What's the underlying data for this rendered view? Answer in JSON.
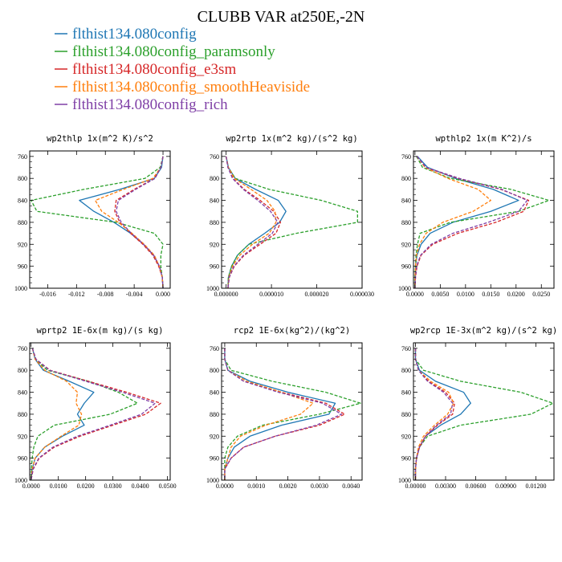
{
  "figure_title": "CLUBB VAR at250E,-2N",
  "legend": [
    {
      "label": "flthist134.080config",
      "color": "#1f77b4"
    },
    {
      "label": "flthist134.080config_paramsonly",
      "color": "#2ca02c"
    },
    {
      "label": "flthist134.080config_e3sm",
      "color": "#d62728"
    },
    {
      "label": "flthist134.080config_smoothHeaviside",
      "color": "#ff7f0e"
    },
    {
      "label": "flthist134.080config_rich",
      "color": "#7f3fa6"
    }
  ],
  "chart_data": [
    {
      "type": "line",
      "title": "wp2thlp  1x(m^2 K)/s^2",
      "xlim": [
        -0.0185,
        0.001
      ],
      "xticks": [
        -0.016,
        -0.012,
        -0.008,
        -0.004,
        0.0
      ],
      "xtick_labels": [
        "-0.016",
        "-0.012",
        "-0.008",
        "-0.004",
        "0.000"
      ],
      "ylim": [
        1000,
        750
      ],
      "yticks": [
        760,
        800,
        840,
        880,
        920,
        960,
        1000
      ],
      "y": [
        760,
        780,
        800,
        820,
        840,
        860,
        880,
        900,
        920,
        940,
        960,
        980,
        1000
      ],
      "series": [
        {
          "name": "flthist134.080config",
          "color": "#1f77b4",
          "dashed": false,
          "values": [
            0.0,
            -0.0002,
            -0.0012,
            -0.006,
            -0.0116,
            -0.0096,
            -0.0068,
            -0.0045,
            -0.0027,
            -0.0013,
            -0.0005,
            -0.0001,
            0.0
          ]
        },
        {
          "name": "flthist134.080config_paramsonly",
          "color": "#2ca02c",
          "dashed": true,
          "values": [
            0.0,
            -0.0004,
            -0.0025,
            -0.011,
            -0.0183,
            -0.0175,
            -0.0065,
            -0.0012,
            0.0,
            -0.0003,
            -0.0003,
            -0.0001,
            0.0
          ]
        },
        {
          "name": "flthist134.080config_e3sm",
          "color": "#d62728",
          "dashed": true,
          "values": [
            0.0,
            -0.0003,
            -0.0012,
            -0.004,
            -0.0065,
            -0.0067,
            -0.006,
            -0.0045,
            -0.0028,
            -0.0014,
            -0.0006,
            -0.0001,
            0.0
          ]
        },
        {
          "name": "flthist134.080config_smoothHeaviside",
          "color": "#ff7f0e",
          "dashed": true,
          "values": [
            0.0,
            -0.0003,
            -0.0014,
            -0.0055,
            -0.0094,
            -0.0085,
            -0.0062,
            -0.0043,
            -0.0026,
            -0.0012,
            -0.0005,
            -0.0001,
            0.0
          ]
        },
        {
          "name": "flthist134.080config_rich",
          "color": "#7f3fa6",
          "dashed": true,
          "values": [
            0.0,
            -0.0003,
            -0.0011,
            -0.0038,
            -0.0062,
            -0.0065,
            -0.0058,
            -0.0044,
            -0.0027,
            -0.0013,
            -0.0005,
            -0.0001,
            0.0
          ]
        }
      ]
    },
    {
      "type": "line",
      "title": "wp2rtp  1x(m^2 kg)/(s^2 kg)",
      "xlim": [
        -1e-06,
        3e-05
      ],
      "xticks": [
        0.0,
        1e-05,
        2e-05,
        3e-05
      ],
      "xtick_labels": [
        "0.000000",
        "0.000010",
        "0.000020",
        "0.000030"
      ],
      "ylim": [
        1000,
        750
      ],
      "yticks": [
        760,
        800,
        840,
        880,
        920,
        960,
        1000
      ],
      "y": [
        760,
        780,
        800,
        820,
        840,
        860,
        880,
        900,
        920,
        940,
        960,
        980,
        1000
      ],
      "series": [
        {
          "name": "flthist134.080config",
          "color": "#1f77b4",
          "dashed": false,
          "values": [
            0.0,
            5e-07,
            2e-06,
            6.5e-06,
            1.15e-05,
            1.32e-05,
            1.18e-05,
            8.5e-06,
            5e-06,
            2.5e-06,
            1.2e-06,
            5e-07,
            4e-07
          ]
        },
        {
          "name": "flthist134.080config_paramsonly",
          "color": "#2ca02c",
          "dashed": true,
          "values": [
            0.0,
            5e-07,
            2e-06,
            9.5e-06,
            2.1e-05,
            2.9e-05,
            2.9e-05,
            1.55e-05,
            5e-06,
            2.5e-06,
            1.2e-06,
            5e-07,
            4e-07
          ]
        },
        {
          "name": "flthist134.080config_e3sm",
          "color": "#d62728",
          "dashed": true,
          "values": [
            0.0,
            4e-07,
            1.5e-06,
            4e-06,
            7.5e-06,
            1.05e-05,
            1.2e-05,
            1.1e-05,
            7.5e-06,
            4e-06,
            1.8e-06,
            7e-07,
            4e-07
          ]
        },
        {
          "name": "flthist134.080config_smoothHeaviside",
          "color": "#ff7f0e",
          "dashed": true,
          "values": [
            0.0,
            5e-07,
            1.8e-06,
            5.5e-06,
            9e-06,
            1.08e-05,
            1.1e-05,
            9.5e-06,
            5.8e-06,
            3e-06,
            1.4e-06,
            6e-07,
            4e-07
          ]
        },
        {
          "name": "flthist134.080config_rich",
          "color": "#7f3fa6",
          "dashed": true,
          "values": [
            0.0,
            4e-07,
            1.4e-06,
            3.8e-06,
            7e-06,
            9.8e-06,
            1.14e-05,
            1.02e-05,
            7e-06,
            3.8e-06,
            1.7e-06,
            7e-07,
            4e-07
          ]
        }
      ]
    },
    {
      "type": "line",
      "title": "wpthlp2  1x(m K^2)/s",
      "xlim": [
        -0.0003,
        0.0275
      ],
      "xticks": [
        0.0,
        0.005,
        0.01,
        0.015,
        0.02,
        0.025
      ],
      "xtick_labels": [
        "0.0000",
        "0.0050",
        "0.0100",
        "0.0150",
        "0.0200",
        "0.0250"
      ],
      "ylim": [
        1000,
        750
      ],
      "yticks": [
        760,
        800,
        840,
        880,
        920,
        960,
        1000
      ],
      "y": [
        760,
        780,
        800,
        820,
        840,
        860,
        880,
        900,
        920,
        940,
        960,
        980,
        1000
      ],
      "series": [
        {
          "name": "flthist134.080config",
          "color": "#1f77b4",
          "dashed": false,
          "values": [
            0.0005,
            0.0025,
            0.008,
            0.0155,
            0.0205,
            0.015,
            0.0075,
            0.003,
            0.0012,
            0.0004,
            0.0001,
            0.0,
            0.0
          ]
        },
        {
          "name": "flthist134.080config_paramsonly",
          "color": "#2ca02c",
          "dashed": true,
          "values": [
            0.0003,
            0.0015,
            0.007,
            0.019,
            0.0265,
            0.0205,
            0.007,
            0.001,
            0.0005,
            0.0002,
            0.0001,
            0.0,
            0.0
          ]
        },
        {
          "name": "flthist134.080config_e3sm",
          "color": "#d62728",
          "dashed": true,
          "values": [
            0.0004,
            0.002,
            0.0085,
            0.017,
            0.0225,
            0.0215,
            0.016,
            0.0085,
            0.0035,
            0.0012,
            0.0004,
            0.0001,
            0.0
          ]
        },
        {
          "name": "flthist134.080config_smoothHeaviside",
          "color": "#ff7f0e",
          "dashed": true,
          "values": [
            0.0004,
            0.002,
            0.0065,
            0.0125,
            0.015,
            0.0115,
            0.0055,
            0.0022,
            0.0009,
            0.0003,
            0.0001,
            0.0,
            0.0
          ]
        },
        {
          "name": "flthist134.080config_rich",
          "color": "#7f3fa6",
          "dashed": true,
          "values": [
            0.0004,
            0.0022,
            0.0088,
            0.0172,
            0.0222,
            0.0205,
            0.0145,
            0.0075,
            0.0032,
            0.0011,
            0.0003,
            0.0001,
            0.0
          ]
        }
      ]
    },
    {
      "type": "line",
      "title": "wprtp2  1E-6x(m kg)/(s kg)",
      "xlim": [
        -0.0005,
        0.051
      ],
      "xticks": [
        0.0,
        0.01,
        0.02,
        0.03,
        0.04,
        0.05
      ],
      "xtick_labels": [
        "0.0000",
        "0.0100",
        "0.0200",
        "0.0300",
        "0.0400",
        "0.0500"
      ],
      "ylim": [
        1000,
        750
      ],
      "yticks": [
        760,
        800,
        840,
        880,
        920,
        960,
        1000
      ],
      "y": [
        760,
        780,
        800,
        820,
        840,
        860,
        880,
        900,
        920,
        940,
        960,
        980,
        1000
      ],
      "series": [
        {
          "name": "flthist134.080config",
          "color": "#1f77b4",
          "dashed": false,
          "values": [
            0.0005,
            0.0015,
            0.0045,
            0.014,
            0.023,
            0.0195,
            0.017,
            0.0195,
            0.0115,
            0.005,
            0.0015,
            0.0004,
            0.0
          ]
        },
        {
          "name": "flthist134.080config_paramsonly",
          "color": "#2ca02c",
          "dashed": true,
          "values": [
            0.0005,
            0.0015,
            0.006,
            0.021,
            0.032,
            0.039,
            0.029,
            0.0085,
            0.0025,
            0.001,
            0.0004,
            0.0001,
            0.0
          ]
        },
        {
          "name": "flthist134.080config_e3sm",
          "color": "#d62728",
          "dashed": true,
          "values": [
            0.0005,
            0.0018,
            0.007,
            0.021,
            0.035,
            0.0475,
            0.042,
            0.03,
            0.018,
            0.0085,
            0.003,
            0.0008,
            0.0
          ]
        },
        {
          "name": "flthist134.080config_smoothHeaviside",
          "color": "#ff7f0e",
          "dashed": true,
          "values": [
            0.0005,
            0.0015,
            0.005,
            0.013,
            0.017,
            0.0165,
            0.0185,
            0.0175,
            0.011,
            0.005,
            0.0015,
            0.0004,
            0.0
          ]
        },
        {
          "name": "flthist134.080config_rich",
          "color": "#7f3fa6",
          "dashed": true,
          "values": [
            0.0005,
            0.0018,
            0.0068,
            0.02,
            0.0335,
            0.0455,
            0.0405,
            0.029,
            0.017,
            0.008,
            0.0028,
            0.0007,
            0.0
          ]
        }
      ]
    },
    {
      "type": "line",
      "title": "rcp2  1E-6x(kg^2)/(kg^2)",
      "xlim": [
        -0.0001,
        0.00435
      ],
      "xticks": [
        0.0,
        0.001,
        0.002,
        0.003,
        0.004
      ],
      "xtick_labels": [
        "0.0000",
        "0.0010",
        "0.0020",
        "0.0030",
        "0.0040"
      ],
      "ylim": [
        1000,
        750
      ],
      "yticks": [
        760,
        800,
        840,
        880,
        920,
        960,
        1000
      ],
      "y": [
        760,
        780,
        800,
        820,
        840,
        860,
        880,
        900,
        920,
        940,
        960,
        980,
        1000
      ],
      "series": [
        {
          "name": "flthist134.080config",
          "color": "#1f77b4",
          "dashed": false,
          "values": [
            0.0,
            0.0,
            0.0001,
            0.0008,
            0.002,
            0.0035,
            0.0033,
            0.0018,
            0.0008,
            0.0003,
            0.0001,
            0.0,
            0.0
          ]
        },
        {
          "name": "flthist134.080config_paramsonly",
          "color": "#2ca02c",
          "dashed": true,
          "values": [
            0.0,
            0.0,
            0.0002,
            0.0015,
            0.0032,
            0.0043,
            0.003,
            0.0012,
            0.0004,
            0.0001,
            0.0,
            0.0,
            0.0
          ]
        },
        {
          "name": "flthist134.080config_e3sm",
          "color": "#d62728",
          "dashed": true,
          "values": [
            0.0,
            0.0,
            0.0001,
            0.0006,
            0.0018,
            0.0032,
            0.0038,
            0.003,
            0.0016,
            0.0006,
            0.0002,
            0.0,
            0.0
          ]
        },
        {
          "name": "flthist134.080config_smoothHeaviside",
          "color": "#ff7f0e",
          "dashed": true,
          "values": [
            0.0,
            0.0,
            0.0001,
            0.0007,
            0.0018,
            0.0028,
            0.0024,
            0.0013,
            0.0005,
            0.0002,
            0.0001,
            0.0,
            0.0
          ]
        },
        {
          "name": "flthist134.080config_rich",
          "color": "#7f3fa6",
          "dashed": true,
          "values": [
            0.0,
            0.0,
            0.0001,
            0.0006,
            0.0017,
            0.0031,
            0.0037,
            0.0029,
            0.0016,
            0.0006,
            0.0002,
            0.0,
            0.0
          ]
        }
      ]
    },
    {
      "type": "line",
      "title": "wp2rcp  1E-3x(m^2 kg)/(s^2 kg)",
      "xlim": [
        -0.0002,
        0.0138
      ],
      "xticks": [
        0.0,
        0.003,
        0.006,
        0.009,
        0.012
      ],
      "xtick_labels": [
        "0.00000",
        "0.00300",
        "0.00600",
        "0.00900",
        "0.01200"
      ],
      "ylim": [
        1000,
        750
      ],
      "yticks": [
        760,
        800,
        840,
        880,
        920,
        960,
        1000
      ],
      "y": [
        760,
        780,
        800,
        820,
        840,
        860,
        880,
        900,
        920,
        940,
        960,
        980,
        1000
      ],
      "series": [
        {
          "name": "flthist134.080config",
          "color": "#1f77b4",
          "dashed": false,
          "values": [
            0.0,
            0.0,
            0.0004,
            0.002,
            0.0048,
            0.0055,
            0.0045,
            0.0025,
            0.001,
            0.0004,
            0.0001,
            0.0,
            0.0
          ]
        },
        {
          "name": "flthist134.080config_paramsonly",
          "color": "#2ca02c",
          "dashed": true,
          "values": [
            0.0,
            0.0,
            0.0008,
            0.0045,
            0.0105,
            0.0137,
            0.0115,
            0.0045,
            0.0012,
            0.0004,
            0.0001,
            0.0,
            0.0
          ]
        },
        {
          "name": "flthist134.080config_e3sm",
          "color": "#d62728",
          "dashed": true,
          "values": [
            0.0,
            0.0,
            0.0003,
            0.0013,
            0.003,
            0.0039,
            0.0037,
            0.0022,
            0.001,
            0.0004,
            0.0001,
            0.0,
            0.0
          ]
        },
        {
          "name": "flthist134.080config_smoothHeaviside",
          "color": "#ff7f0e",
          "dashed": true,
          "values": [
            0.0,
            0.0,
            0.0003,
            0.0015,
            0.0033,
            0.0038,
            0.0032,
            0.0019,
            0.0008,
            0.0003,
            0.0001,
            0.0,
            0.0
          ]
        },
        {
          "name": "flthist134.080config_rich",
          "color": "#7f3fa6",
          "dashed": true,
          "values": [
            0.0,
            0.0,
            0.0003,
            0.0012,
            0.0028,
            0.0037,
            0.0035,
            0.0021,
            0.001,
            0.0004,
            0.0001,
            0.0,
            0.0
          ]
        }
      ]
    }
  ]
}
